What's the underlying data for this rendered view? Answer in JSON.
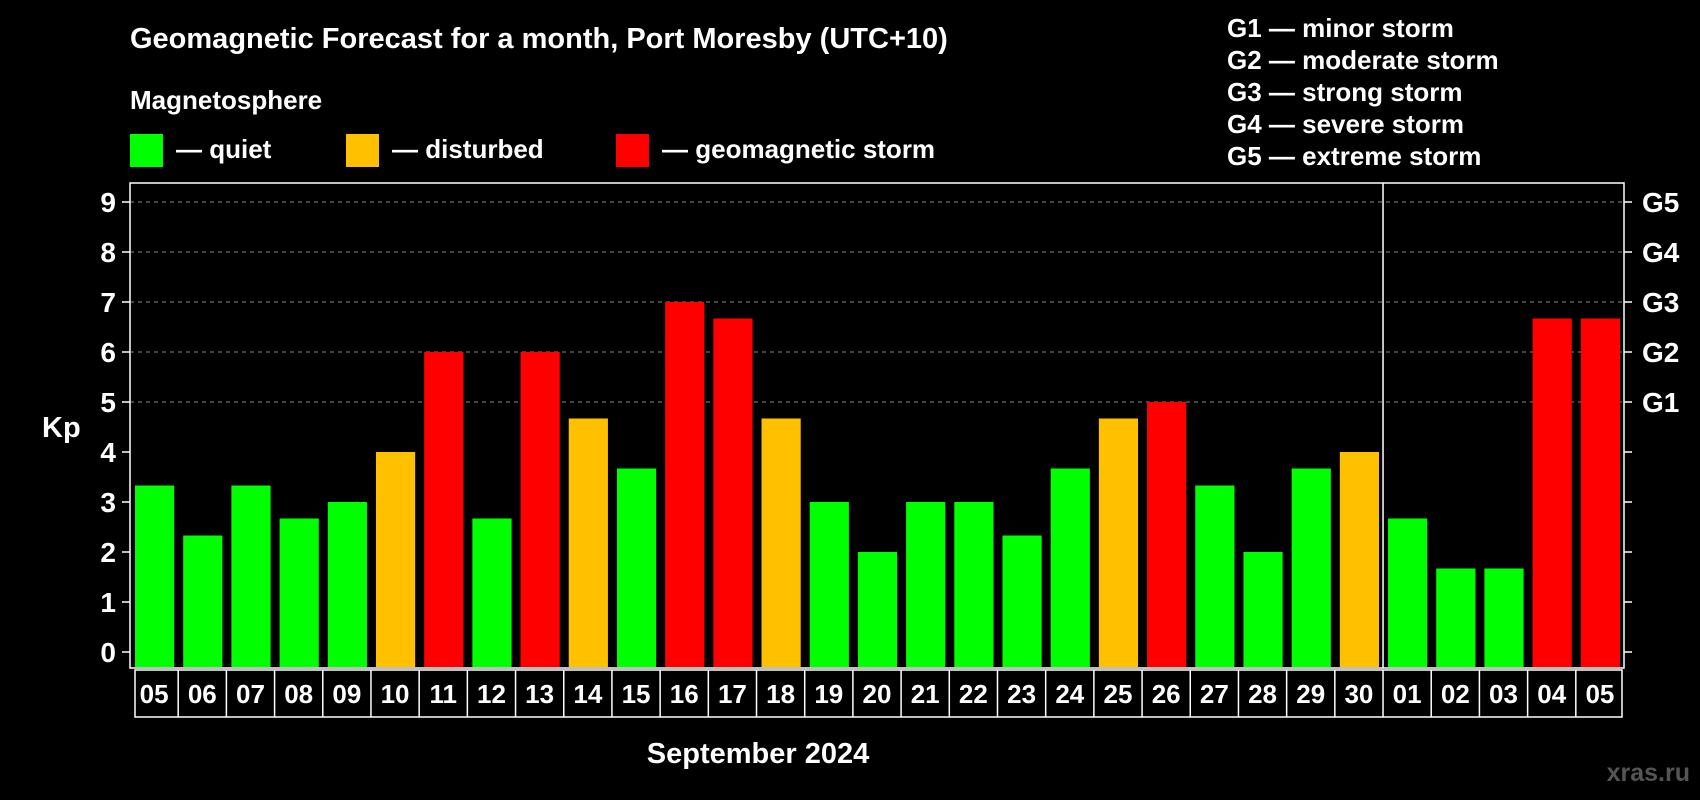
{
  "chart_data": {
    "type": "bar",
    "title": "Geomagnetic Forecast for a month, Port Moresby (UTC+10)",
    "legend_title": "Magnetosphere",
    "legend": [
      {
        "label": "— quiet",
        "color": "#00ff00"
      },
      {
        "label": "— disturbed",
        "color": "#ffc000"
      },
      {
        "label": "— geomagnetic storm",
        "color": "#ff0000"
      }
    ],
    "g_scale": [
      "G1 — minor storm",
      "G2 — moderate storm",
      "G3 — strong storm",
      "G4 — severe storm",
      "G5 — extreme storm"
    ],
    "ylabel": "Kp",
    "xlabel": "September 2024",
    "ylim": [
      0,
      9
    ],
    "y_ticks": [
      "0",
      "1",
      "2",
      "3",
      "4",
      "5",
      "6",
      "7",
      "8",
      "9"
    ],
    "right_axis_labels": [
      {
        "kp": 5,
        "label": "G1"
      },
      {
        "kp": 6,
        "label": "G2"
      },
      {
        "kp": 7,
        "label": "G3"
      },
      {
        "kp": 8,
        "label": "G4"
      },
      {
        "kp": 9,
        "label": "G5"
      }
    ],
    "grid": "dashed at Kp 5–9",
    "month_divider_after": "30",
    "categories": [
      "05",
      "06",
      "07",
      "08",
      "09",
      "10",
      "11",
      "12",
      "13",
      "14",
      "15",
      "16",
      "17",
      "18",
      "19",
      "20",
      "21",
      "22",
      "23",
      "24",
      "25",
      "26",
      "27",
      "28",
      "29",
      "30",
      "01",
      "02",
      "03",
      "04",
      "05"
    ],
    "values": [
      3.33,
      2.33,
      3.33,
      2.67,
      3.0,
      4.0,
      6.0,
      2.67,
      6.0,
      4.67,
      3.67,
      7.0,
      6.67,
      4.67,
      3.0,
      2.0,
      3.0,
      3.0,
      2.33,
      3.67,
      4.67,
      5.0,
      3.33,
      2.0,
      3.67,
      4.0,
      2.67,
      1.67,
      1.67,
      6.67,
      6.67
    ],
    "status": [
      "quiet",
      "quiet",
      "quiet",
      "quiet",
      "quiet",
      "disturbed",
      "storm",
      "quiet",
      "storm",
      "disturbed",
      "quiet",
      "storm",
      "storm",
      "disturbed",
      "quiet",
      "quiet",
      "quiet",
      "quiet",
      "quiet",
      "quiet",
      "disturbed",
      "storm",
      "quiet",
      "quiet",
      "quiet",
      "disturbed",
      "quiet",
      "quiet",
      "quiet",
      "storm",
      "storm"
    ],
    "status_colors": {
      "quiet": "#00ff00",
      "disturbed": "#ffc000",
      "storm": "#ff0000"
    }
  },
  "watermark": "xras.ru"
}
